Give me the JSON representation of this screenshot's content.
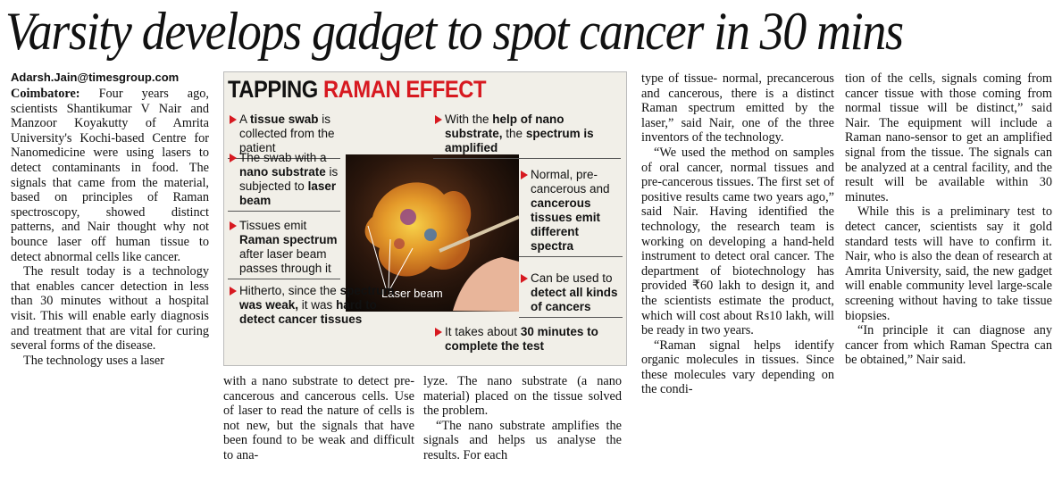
{
  "headline": "Varsity develops gadget to spot cancer in 30 mins",
  "byline": "Adarsh.Jain@timesgroup.com",
  "columns": [
    {
      "lead": "Coimbatore:",
      "paragraphs": [
        "Four years ago, scientists Shantikumar V Nair and Manzoor Koyakutty of Amrita University's Kochi-based Centre for Nanomedicine were using lasers to detect contaminants in food. The signals that came from the material, based on principles of Raman spectroscopy, showed distinct patterns, and Nair thought why not bounce laser off human tissue to detect abnormal cells like cancer.",
        "The result today is a technology that enables cancer detection in less than 30 minutes without a hospital visit. This will enable early diagnosis and treatment that are vital for curing several forms of the disease.",
        "The technology uses a laser"
      ]
    },
    {
      "paragraphs": [
        "with a nano substrate to detect pre-cancerous and cancerous cells. Use of laser to read the nature of cells is not new, but the signals that have been found to be weak and difficult to ana-"
      ]
    },
    {
      "paragraphs": [
        "lyze. The nano substrate (a nano material) placed on the tissue solved the problem.",
        "“The nano substrate amplifies the signals and helps us analyse the results. For each"
      ]
    },
    {
      "paragraphs": [
        "type of tissue- normal, precancerous and cancerous, there is a distinct Raman spectrum emitted by the laser,” said Nair, one of the three inventors of the technology.",
        "“We used the method on samples of oral cancer, normal tissues and pre-cancerous tissues. The first set of positive results came two years ago,” said Nair. Having identified the technology, the research team is working on developing a hand-held instrument to detect oral cancer. The department of biotechnology has provided ₹60 lakh to design it, and the scientists estimate the product, which will cost about Rs10 lakh, will be ready in two years.",
        "“Raman signal helps identify organic molecules in tissues. Since these molecules vary depending on the condi-"
      ]
    },
    {
      "paragraphs": [
        "tion of the cells, signals coming from cancer tissue with those coming from normal tissue will be distinct,” said Nair. The equipment will include a Raman nano-sensor to get an amplified signal from the tissue. The signals can be analyzed at a central facility, and the result will be available within 30 minutes.",
        "While this is a preliminary test to detect cancer, scientists say it gold standard tests will have to confirm it. Nair, who is also the dean of research at Amrita University, said, the new gadget will enable community level large-scale screening without having to take tissue biopsies.",
        "“In principle it can diagnose any cancer from which Raman Spectra can be obtained,” Nair said."
      ]
    }
  ],
  "infobox": {
    "title": "TAPPING",
    "title_highlight": "RAMAN EFFECT",
    "caption": "Laser beam",
    "bullets": [
      {
        "runs": [
          {
            "text": "A ",
            "bold": false
          },
          {
            "text": "tissue swab",
            "bold": true
          },
          {
            "text": " is collected from the patient",
            "bold": false
          }
        ]
      },
      {
        "runs": [
          {
            "text": "The swab with a ",
            "bold": false
          },
          {
            "text": "nano substrate",
            "bold": true
          },
          {
            "text": " is subjected to ",
            "bold": false
          },
          {
            "text": "laser beam",
            "bold": true
          }
        ]
      },
      {
        "runs": [
          {
            "text": "Tissues emit ",
            "bold": false
          },
          {
            "text": "Raman spectrum",
            "bold": true
          },
          {
            "text": " after laser beam passes through it",
            "bold": false
          }
        ]
      },
      {
        "runs": [
          {
            "text": "Hitherto, since the ",
            "bold": false
          },
          {
            "text": "spectrum was weak,",
            "bold": true
          },
          {
            "text": " it was ",
            "bold": false
          },
          {
            "text": "hard to detect cancer tissues",
            "bold": true
          }
        ]
      },
      {
        "runs": [
          {
            "text": "With the ",
            "bold": false
          },
          {
            "text": "help of nano substrate,",
            "bold": true
          },
          {
            "text": " the ",
            "bold": false
          },
          {
            "text": "spectrum is amplified",
            "bold": true
          }
        ]
      },
      {
        "runs": [
          {
            "text": "Normal, pre-cancerous and ",
            "bold": false
          },
          {
            "text": "cancerous tissues emit different spectra",
            "bold": true
          }
        ]
      },
      {
        "runs": [
          {
            "text": "Can be used to ",
            "bold": false
          },
          {
            "text": "detect all kinds of cancers",
            "bold": true
          }
        ]
      },
      {
        "runs": [
          {
            "text": "It takes about ",
            "bold": false
          },
          {
            "text": "30 minutes to complete the test",
            "bold": true
          }
        ]
      }
    ]
  }
}
